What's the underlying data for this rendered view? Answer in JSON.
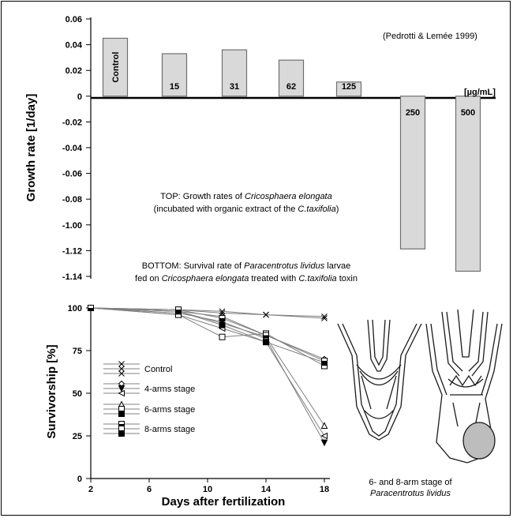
{
  "source_note": "(Pedrotti & Lemée 1999)",
  "unit_label": "[µg/mL]",
  "caption_top": {
    "line1_prefix": "TOP: Growth rates of ",
    "line1_species": "Cricosphaera elongata",
    "line2_prefix": "(incubated with organic extract of the ",
    "line2_species": "C.taxifolia",
    "line2_suffix": ")"
  },
  "caption_bottom": {
    "line1_prefix": "BOTTOM: Survival rate of ",
    "line1_species": "Paracentrotus lividus",
    "line1_suffix": "  larvae",
    "line2_prefix": "fed on ",
    "line2_species": "Cricosphaera elongata",
    "line2_mid": " treated with ",
    "line2_species2": "C.taxifolia",
    "line2_suffix": " toxin"
  },
  "illustration": {
    "caption_line1": "6- and 8-arm stage of",
    "caption_line2": "Paracentrotus lividus"
  },
  "colors": {
    "bar_fill": "#d9d9d9",
    "bar_stroke": "#707070",
    "axis": "#000000",
    "line": "#808080"
  },
  "chart_data": [
    {
      "type": "bar",
      "ylabel": "Growth rate [1/day]",
      "y_tick_labels": [
        "0.06",
        "0.04",
        "0.02",
        "0",
        "-0.02",
        "-0.04",
        "-0.06",
        "-0.08",
        "-1.00",
        "-1.12",
        "-1.14"
      ],
      "categories": [
        "Control",
        "15",
        "31",
        "62",
        "125",
        "250",
        "500"
      ],
      "values": [
        0.045,
        0.033,
        0.036,
        0.028,
        0.011,
        -1.112,
        -1.136
      ]
    },
    {
      "type": "line",
      "xlabel": "Days after fertilization",
      "ylabel": "Survivorship [%]",
      "x_ticks": [
        2,
        6,
        10,
        14,
        18
      ],
      "y_ticks": [
        0,
        25,
        50,
        75,
        100
      ],
      "xlim": [
        2,
        18
      ],
      "ylim": [
        0,
        100
      ],
      "x": [
        2,
        8,
        11,
        14,
        18
      ],
      "legend": [
        "Control",
        "4-arms stage",
        "6-arms stage",
        "8-arms stage"
      ],
      "series": [
        {
          "values": [
            100,
            99,
            97,
            96,
            94
          ]
        },
        {
          "values": [
            100,
            99,
            98,
            96,
            95
          ]
        },
        {
          "values": [
            100,
            98,
            95,
            84,
            70
          ]
        },
        {
          "values": [
            100,
            97,
            92,
            82,
            21
          ]
        },
        {
          "values": [
            100,
            96,
            88,
            80,
            25
          ]
        },
        {
          "values": [
            100,
            98,
            91,
            83,
            31
          ]
        },
        {
          "values": [
            100,
            96,
            83,
            85,
            66
          ]
        },
        {
          "values": [
            100,
            98,
            90,
            80,
            68
          ]
        },
        {
          "values": [
            100,
            99,
            94,
            84,
            69
          ]
        }
      ]
    }
  ]
}
